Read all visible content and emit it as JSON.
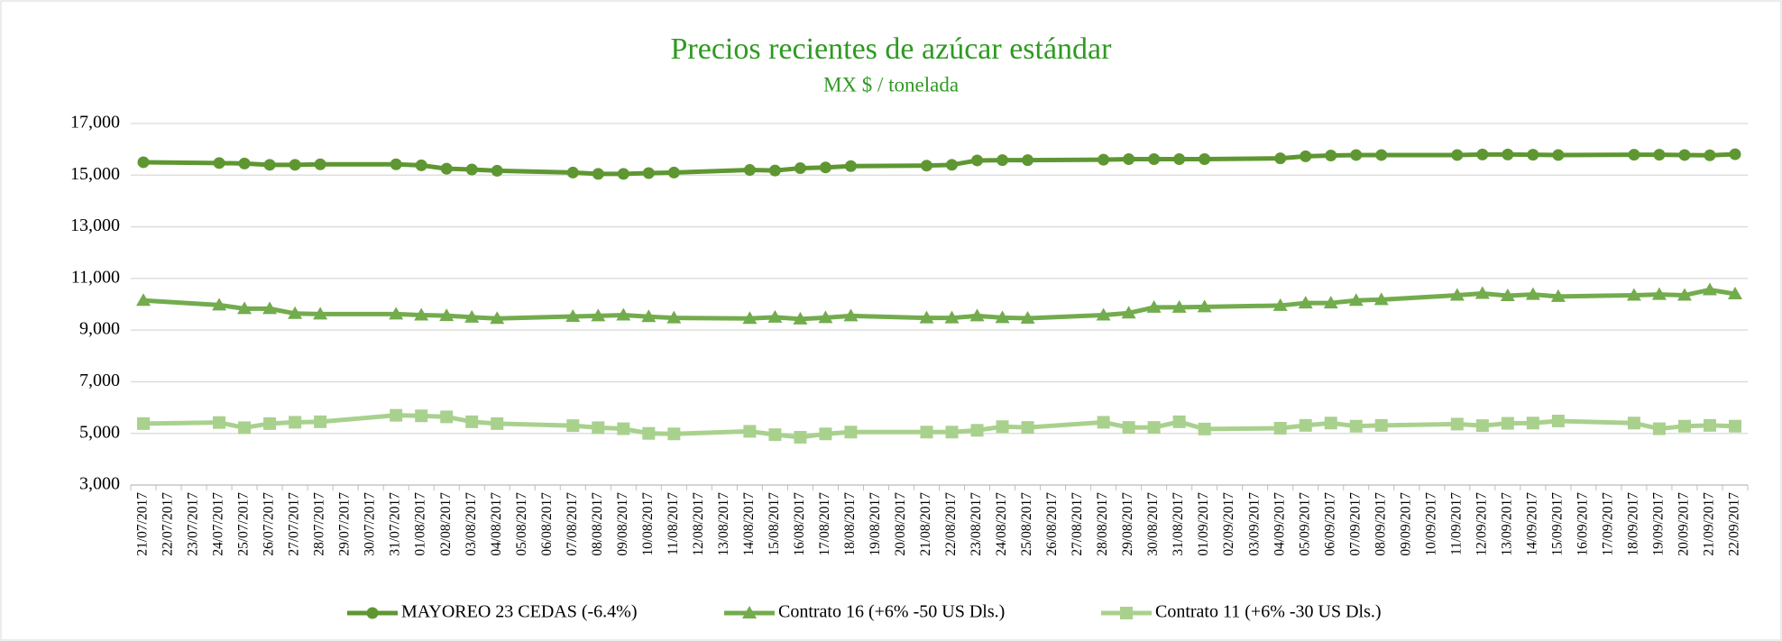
{
  "chart_data": {
    "type": "line",
    "title": "Precios recientes de azúcar estándar",
    "subtitle": "MX $ / tonelada",
    "x": [
      "21/07/2017",
      "24/07/2017",
      "25/07/2017",
      "26/07/2017",
      "27/07/2017",
      "28/07/2017",
      "31/07/2017",
      "01/08/2017",
      "02/08/2017",
      "03/08/2017",
      "04/08/2017",
      "07/08/2017",
      "08/08/2017",
      "09/08/2017",
      "10/08/2017",
      "11/08/2017",
      "14/08/2017",
      "15/08/2017",
      "16/08/2017",
      "17/08/2017",
      "18/08/2017",
      "21/08/2017",
      "22/08/2017",
      "23/08/2017",
      "24/08/2017",
      "25/08/2017",
      "28/08/2017",
      "29/08/2017",
      "30/08/2017",
      "31/08/2017",
      "01/09/2017",
      "04/09/2017",
      "05/09/2017",
      "06/09/2017",
      "07/09/2017",
      "08/09/2017",
      "11/09/2017",
      "12/09/2017",
      "13/09/2017",
      "14/09/2017",
      "15/09/2017",
      "18/09/2017",
      "19/09/2017",
      "20/09/2017",
      "21/09/2017",
      "22/09/2017"
    ],
    "xlim": [
      "21/07/2017",
      "22/09/2017"
    ],
    "xticks": [
      "21/07/2017",
      "22/07/2017",
      "23/07/2017",
      "24/07/2017",
      "25/07/2017",
      "26/07/2017",
      "27/07/2017",
      "28/07/2017",
      "29/07/2017",
      "30/07/2017",
      "31/07/2017",
      "01/08/2017",
      "02/08/2017",
      "03/08/2017",
      "04/08/2017",
      "05/08/2017",
      "06/08/2017",
      "07/08/2017",
      "08/08/2017",
      "09/08/2017",
      "10/08/2017",
      "11/08/2017",
      "12/08/2017",
      "13/08/2017",
      "14/08/2017",
      "15/08/2017",
      "16/08/2017",
      "17/08/2017",
      "18/08/2017",
      "19/08/2017",
      "20/08/2017",
      "21/08/2017",
      "22/08/2017",
      "23/08/2017",
      "24/08/2017",
      "25/08/2017",
      "26/08/2017",
      "27/08/2017",
      "28/08/2017",
      "29/08/2017",
      "30/08/2017",
      "31/08/2017",
      "01/09/2017",
      "02/09/2017",
      "03/09/2017",
      "04/09/2017",
      "05/09/2017",
      "06/09/2017",
      "07/09/2017",
      "08/09/2017",
      "09/09/2017",
      "10/09/2017",
      "11/09/2017",
      "12/09/2017",
      "13/09/2017",
      "14/09/2017",
      "15/09/2017",
      "16/09/2017",
      "17/09/2017",
      "18/09/2017",
      "19/09/2017",
      "20/09/2017",
      "21/09/2017",
      "22/09/2017"
    ],
    "ylim": [
      3000,
      17000
    ],
    "yticks": [
      {
        "value": 3000,
        "label": "3,000"
      },
      {
        "value": 5000,
        "label": "5,000"
      },
      {
        "value": 7000,
        "label": "7,000"
      },
      {
        "value": 9000,
        "label": "9,000"
      },
      {
        "value": 11000,
        "label": "11,000"
      },
      {
        "value": 13000,
        "label": "13,000"
      },
      {
        "value": 15000,
        "label": "15,000"
      },
      {
        "value": 17000,
        "label": "17,000"
      }
    ],
    "grid": true,
    "legend": "bottom",
    "series": [
      {
        "name": "MAYOREO 23 CEDAS (-6.4%)",
        "color": "#5e9732",
        "marker": "circle",
        "values": [
          15500,
          15470,
          15450,
          15400,
          15400,
          15420,
          15420,
          15380,
          15250,
          15220,
          15170,
          15100,
          15050,
          15050,
          15080,
          15100,
          15200,
          15180,
          15270,
          15300,
          15350,
          15370,
          15400,
          15570,
          15580,
          15580,
          15600,
          15620,
          15620,
          15620,
          15620,
          15650,
          15730,
          15760,
          15780,
          15780,
          15780,
          15800,
          15800,
          15790,
          15780,
          15790,
          15790,
          15780,
          15770,
          15810
        ]
      },
      {
        "name": "Contrato 16 (+6% -50 US Dls.)",
        "color": "#72ac4d",
        "marker": "triangle",
        "values": [
          10150,
          9970,
          9830,
          9830,
          9640,
          9620,
          9620,
          9580,
          9560,
          9500,
          9450,
          9530,
          9550,
          9580,
          9520,
          9470,
          9450,
          9500,
          9430,
          9480,
          9550,
          9470,
          9470,
          9550,
          9480,
          9460,
          9580,
          9660,
          9880,
          9880,
          9900,
          9950,
          10050,
          10050,
          10150,
          10180,
          10350,
          10420,
          10330,
          10380,
          10300,
          10350,
          10380,
          10350,
          10560,
          10400
        ]
      },
      {
        "name": "Contrato 11 (+6% -30 US Dls.)",
        "color": "#a9d18e",
        "marker": "square",
        "values": [
          5380,
          5420,
          5220,
          5380,
          5430,
          5450,
          5700,
          5680,
          5640,
          5450,
          5380,
          5300,
          5220,
          5180,
          5000,
          4980,
          5080,
          4950,
          4850,
          4980,
          5050,
          5050,
          5050,
          5120,
          5260,
          5230,
          5430,
          5230,
          5230,
          5450,
          5170,
          5200,
          5310,
          5400,
          5280,
          5310,
          5360,
          5300,
          5390,
          5400,
          5480,
          5400,
          5180,
          5280,
          5310,
          5280
        ]
      }
    ]
  }
}
